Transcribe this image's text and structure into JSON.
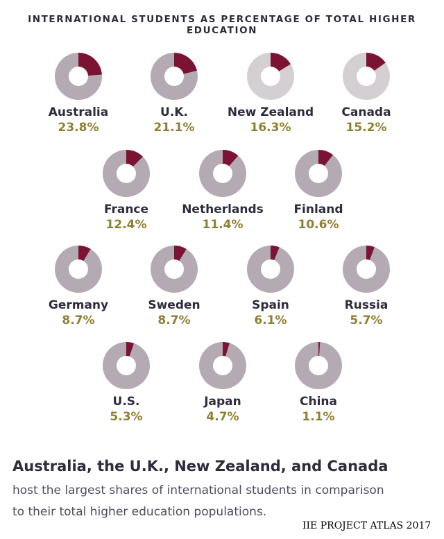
{
  "title": "INTERNATIONAL STUDENTS AS PERCENTAGE OF TOTAL HIGHER EDUCATION",
  "colors": {
    "share": "#7a1432",
    "ring_default": "#b4aab3",
    "ring_light": "#d4cfd3",
    "country_text": "#2f2b3c",
    "pct_text": "#8f7f30"
  },
  "chart_data": {
    "type": "pie",
    "categories": [
      "Australia",
      "U.K.",
      "New Zealand",
      "Canada",
      "France",
      "Netherlands",
      "Finland",
      "Germany",
      "Sweden",
      "Spain",
      "Russia",
      "U.S.",
      "Japan",
      "China"
    ],
    "values": [
      23.8,
      21.1,
      16.3,
      15.2,
      12.4,
      11.4,
      10.6,
      8.7,
      8.7,
      6.1,
      5.7,
      5.3,
      4.7,
      1.1
    ],
    "labels": [
      "23.8%",
      "21.1%",
      "16.3%",
      "15.2%",
      "12.4%",
      "11.4%",
      "10.6%",
      "8.7%",
      "8.7%",
      "6.1%",
      "5.7%",
      "5.3%",
      "4.7%",
      "1.1%"
    ],
    "highlighted": [
      "New Zealand",
      "Canada"
    ]
  },
  "headline": "Australia, the U.K., New Zealand, and Canada",
  "body_lines": [
    "host the largest shares of international students in comparison",
    "to their total higher education populations."
  ],
  "source": "IIE PROJECT ATLAS 2017"
}
